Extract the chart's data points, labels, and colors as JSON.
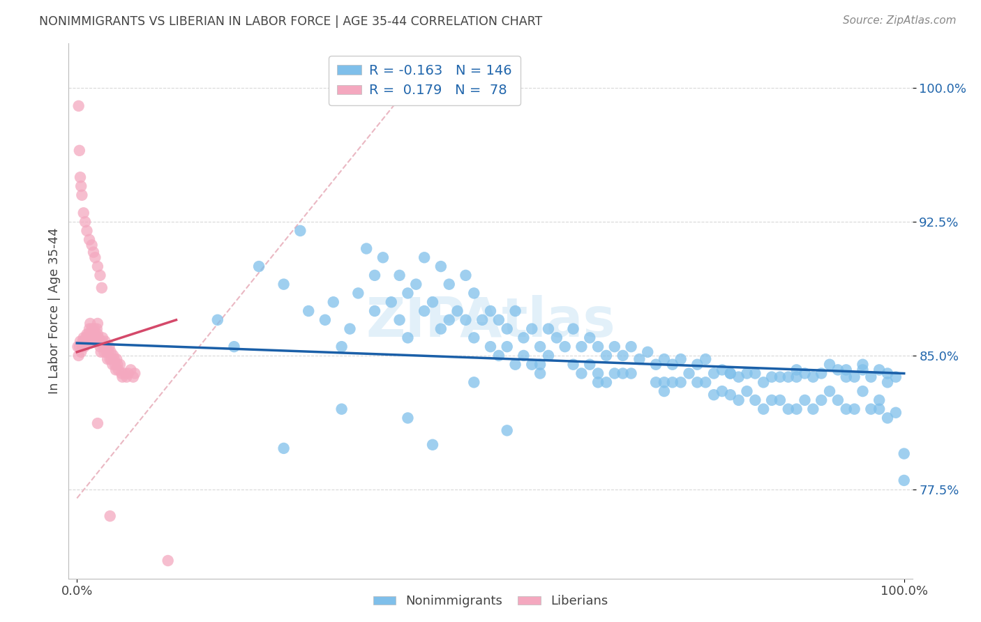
{
  "title": "NONIMMIGRANTS VS LIBERIAN IN LABOR FORCE | AGE 35-44 CORRELATION CHART",
  "source": "Source: ZipAtlas.com",
  "ylabel": "In Labor Force | Age 35-44",
  "r_nonimm": -0.163,
  "n_nonimm": 146,
  "r_liber": 0.179,
  "n_liber": 78,
  "blue_scatter_color": "#7fbfea",
  "pink_scatter_color": "#f4a8bf",
  "blue_line_color": "#1a5fa8",
  "pink_line_color": "#d4496a",
  "dashed_line_color": "#e8b0bc",
  "legend_text_color": "#2166ac",
  "background_color": "#ffffff",
  "grid_color": "#d8d8d8",
  "title_color": "#444444",
  "xlim": [
    -0.01,
    1.01
  ],
  "ylim": [
    0.725,
    1.025
  ],
  "ytick_vals": [
    0.775,
    0.85,
    0.925,
    1.0
  ],
  "ytick_labels": [
    "77.5%",
    "85.0%",
    "92.5%",
    "100.0%"
  ],
  "nonimm_x": [
    0.17,
    0.19,
    0.22,
    0.25,
    0.27,
    0.28,
    0.3,
    0.31,
    0.32,
    0.33,
    0.34,
    0.35,
    0.36,
    0.36,
    0.37,
    0.38,
    0.39,
    0.39,
    0.4,
    0.4,
    0.41,
    0.42,
    0.42,
    0.43,
    0.44,
    0.44,
    0.45,
    0.45,
    0.46,
    0.47,
    0.47,
    0.48,
    0.48,
    0.49,
    0.5,
    0.5,
    0.51,
    0.51,
    0.52,
    0.52,
    0.53,
    0.53,
    0.54,
    0.54,
    0.55,
    0.55,
    0.56,
    0.56,
    0.57,
    0.57,
    0.58,
    0.59,
    0.6,
    0.6,
    0.61,
    0.61,
    0.62,
    0.62,
    0.63,
    0.63,
    0.64,
    0.64,
    0.65,
    0.65,
    0.66,
    0.66,
    0.67,
    0.67,
    0.68,
    0.69,
    0.7,
    0.7,
    0.71,
    0.71,
    0.72,
    0.72,
    0.73,
    0.73,
    0.74,
    0.75,
    0.75,
    0.76,
    0.76,
    0.77,
    0.77,
    0.78,
    0.78,
    0.79,
    0.79,
    0.8,
    0.8,
    0.81,
    0.81,
    0.82,
    0.82,
    0.83,
    0.83,
    0.84,
    0.84,
    0.85,
    0.85,
    0.86,
    0.86,
    0.87,
    0.87,
    0.88,
    0.88,
    0.89,
    0.89,
    0.9,
    0.9,
    0.91,
    0.91,
    0.92,
    0.92,
    0.93,
    0.93,
    0.94,
    0.94,
    0.95,
    0.95,
    0.95,
    0.96,
    0.96,
    0.97,
    0.97,
    0.97,
    0.98,
    0.98,
    0.99,
    0.99,
    1.0,
    1.0,
    0.25,
    0.32,
    0.4,
    0.48,
    0.56,
    0.63,
    0.71,
    0.79,
    0.87,
    0.93,
    0.98,
    0.43,
    0.52
  ],
  "nonimm_y": [
    0.87,
    0.855,
    0.9,
    0.89,
    0.92,
    0.875,
    0.87,
    0.88,
    0.855,
    0.865,
    0.885,
    0.91,
    0.895,
    0.875,
    0.905,
    0.88,
    0.895,
    0.87,
    0.885,
    0.86,
    0.89,
    0.905,
    0.875,
    0.88,
    0.9,
    0.865,
    0.89,
    0.87,
    0.875,
    0.895,
    0.87,
    0.885,
    0.86,
    0.87,
    0.855,
    0.875,
    0.87,
    0.85,
    0.865,
    0.855,
    0.875,
    0.845,
    0.86,
    0.85,
    0.865,
    0.845,
    0.855,
    0.84,
    0.865,
    0.85,
    0.86,
    0.855,
    0.865,
    0.845,
    0.855,
    0.84,
    0.86,
    0.845,
    0.855,
    0.84,
    0.85,
    0.835,
    0.855,
    0.84,
    0.85,
    0.84,
    0.855,
    0.84,
    0.848,
    0.852,
    0.845,
    0.835,
    0.848,
    0.835,
    0.845,
    0.835,
    0.848,
    0.835,
    0.84,
    0.845,
    0.835,
    0.848,
    0.835,
    0.84,
    0.828,
    0.842,
    0.83,
    0.84,
    0.828,
    0.838,
    0.825,
    0.84,
    0.83,
    0.84,
    0.825,
    0.835,
    0.82,
    0.838,
    0.825,
    0.838,
    0.825,
    0.838,
    0.82,
    0.838,
    0.82,
    0.84,
    0.825,
    0.838,
    0.82,
    0.84,
    0.825,
    0.845,
    0.83,
    0.842,
    0.825,
    0.842,
    0.82,
    0.838,
    0.82,
    0.845,
    0.83,
    0.842,
    0.82,
    0.838,
    0.82,
    0.842,
    0.825,
    0.84,
    0.815,
    0.838,
    0.818,
    0.795,
    0.78,
    0.798,
    0.82,
    0.815,
    0.835,
    0.845,
    0.835,
    0.83,
    0.84,
    0.842,
    0.838,
    0.835,
    0.8,
    0.808
  ],
  "liber_x": [
    0.001,
    0.002,
    0.003,
    0.004,
    0.005,
    0.006,
    0.007,
    0.008,
    0.009,
    0.01,
    0.011,
    0.012,
    0.013,
    0.014,
    0.015,
    0.016,
    0.017,
    0.018,
    0.019,
    0.02,
    0.021,
    0.022,
    0.023,
    0.024,
    0.025,
    0.025,
    0.026,
    0.027,
    0.028,
    0.029,
    0.03,
    0.031,
    0.032,
    0.033,
    0.034,
    0.035,
    0.036,
    0.037,
    0.038,
    0.039,
    0.04,
    0.041,
    0.042,
    0.043,
    0.044,
    0.045,
    0.046,
    0.047,
    0.048,
    0.049,
    0.05,
    0.052,
    0.054,
    0.055,
    0.058,
    0.06,
    0.062,
    0.065,
    0.068,
    0.07,
    0.01,
    0.012,
    0.015,
    0.018,
    0.02,
    0.022,
    0.025,
    0.028,
    0.03,
    0.002,
    0.003,
    0.004,
    0.005,
    0.006,
    0.008,
    0.025,
    0.04,
    0.11
  ],
  "liber_y": [
    0.855,
    0.85,
    0.855,
    0.858,
    0.852,
    0.856,
    0.858,
    0.86,
    0.855,
    0.858,
    0.86,
    0.862,
    0.858,
    0.862,
    0.865,
    0.868,
    0.862,
    0.865,
    0.858,
    0.862,
    0.865,
    0.862,
    0.858,
    0.865,
    0.868,
    0.862,
    0.86,
    0.858,
    0.855,
    0.852,
    0.858,
    0.86,
    0.855,
    0.852,
    0.858,
    0.855,
    0.852,
    0.848,
    0.852,
    0.855,
    0.848,
    0.852,
    0.848,
    0.845,
    0.85,
    0.848,
    0.845,
    0.842,
    0.848,
    0.845,
    0.842,
    0.845,
    0.84,
    0.838,
    0.84,
    0.838,
    0.84,
    0.842,
    0.838,
    0.84,
    0.925,
    0.92,
    0.915,
    0.912,
    0.908,
    0.905,
    0.9,
    0.895,
    0.888,
    0.99,
    0.965,
    0.95,
    0.945,
    0.94,
    0.93,
    0.812,
    0.76,
    0.735
  ]
}
